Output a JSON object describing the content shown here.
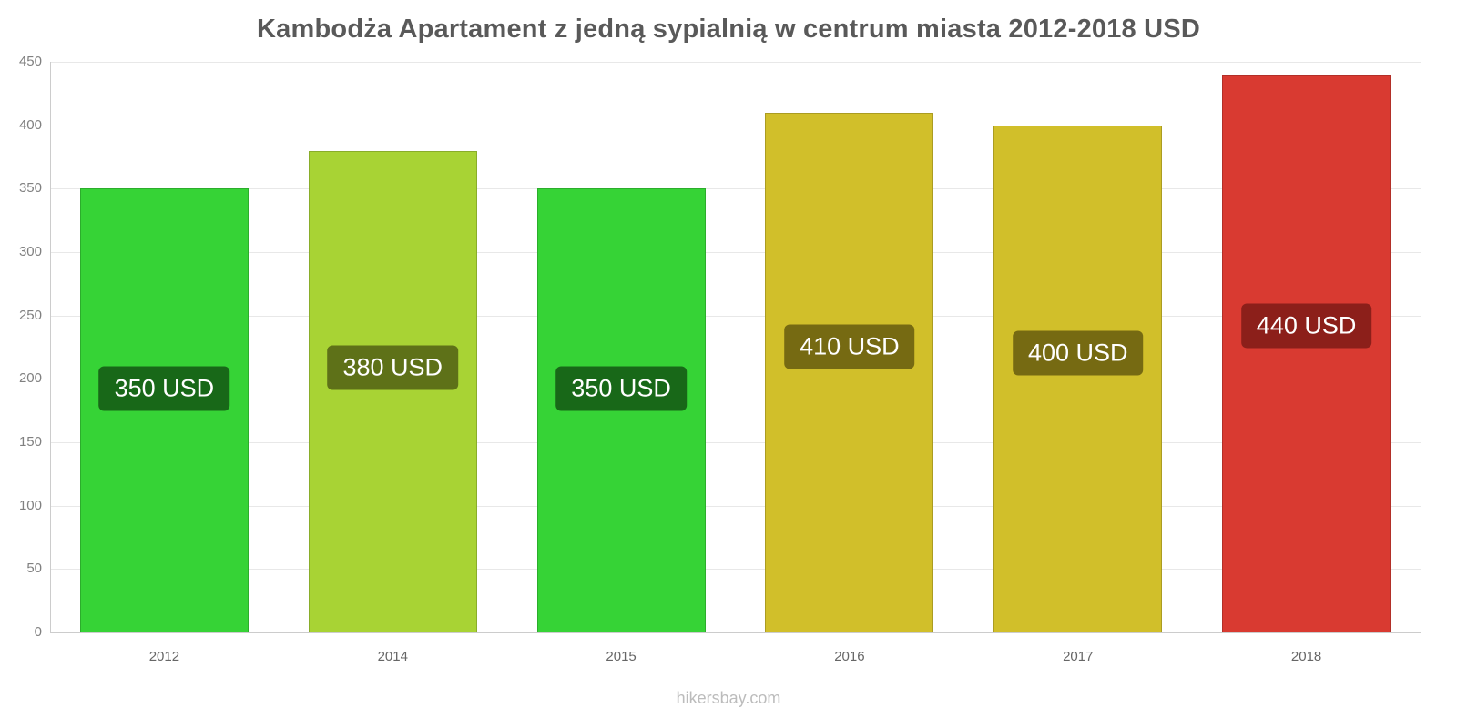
{
  "title": "Kambodża Apartament z jedną sypialnią w centrum miasta 2012-2018 USD",
  "footer": "hikersbay.com",
  "colors": {
    "title": "#595959",
    "axis_label": "#808080",
    "grid": "#e8e8e8",
    "axis_line": "#cccccc",
    "footer": "#bcbcbc",
    "bar_label_text": "#ffffff"
  },
  "chart_data": {
    "type": "bar",
    "title": "Kambodża Apartament z jedną sypialnią w centrum miasta 2012-2018 USD",
    "categories": [
      "2012",
      "2014",
      "2015",
      "2016",
      "2017",
      "2018"
    ],
    "values": [
      350,
      380,
      350,
      410,
      400,
      440
    ],
    "bar_labels": [
      "350 USD",
      "380 USD",
      "350 USD",
      "410 USD",
      "400 USD",
      "440 USD"
    ],
    "bar_colors": [
      "#36d336",
      "#a8d334",
      "#36d336",
      "#d1bf2a",
      "#d1bf2a",
      "#d93a31"
    ],
    "label_bg_colors": [
      "#186818",
      "#5e7118",
      "#186818",
      "#766a12",
      "#766a12",
      "#8c1f1a"
    ],
    "unit": "USD",
    "xlabel": "",
    "ylabel": "",
    "ylim": [
      0,
      450
    ],
    "ytick_step": 50,
    "yticks": [
      0,
      50,
      100,
      150,
      200,
      250,
      300,
      350,
      400,
      450
    ],
    "grid": true,
    "legend_position": "none"
  }
}
